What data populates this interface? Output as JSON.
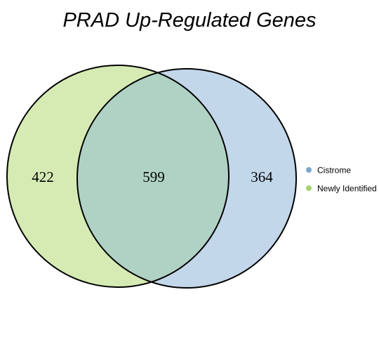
{
  "title": "PRAD Up-Regulated Genes",
  "sets": [
    {
      "name": "Newly Identified",
      "fill": "#d6ebb4",
      "legend_color": "#a6d56a"
    },
    {
      "name": "Cistrome",
      "fill": "#c3d7ea",
      "legend_color": "#7aa8cf"
    }
  ],
  "overlap_fill": "#b0d2c4",
  "outline_color": "#000000",
  "counts": {
    "only_newly_identified": "422",
    "both": "599",
    "only_cistrome": "364"
  },
  "legend": [
    {
      "label": "Cistrome",
      "color": "#7aa8cf"
    },
    {
      "label": "Newly Identified",
      "color": "#a6d56a"
    }
  ]
}
